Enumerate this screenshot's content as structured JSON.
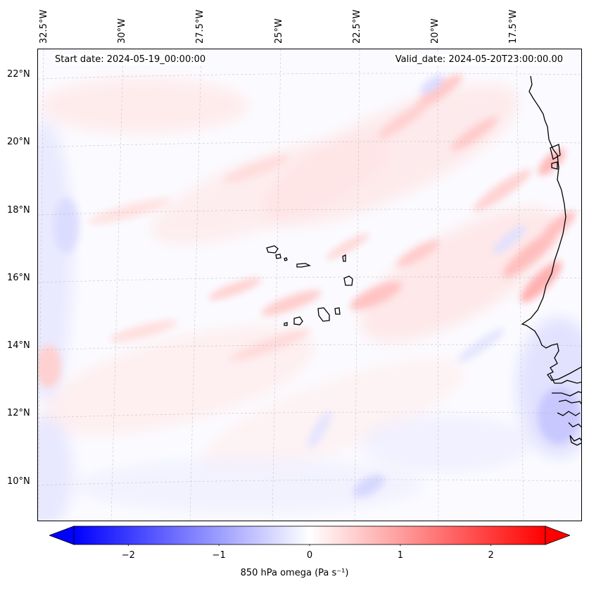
{
  "header": {
    "start_date": "Start date: 2024-05-19_00:00:00",
    "valid_date": "Valid_date: 2024-05-20T23:00:00.00"
  },
  "map": {
    "longitude_labels": [
      "32.5°W",
      "30°W",
      "27.5°W",
      "25°W",
      "22.5°W",
      "20°W",
      "17.5°W"
    ],
    "latitude_labels": [
      "22°N",
      "20°N",
      "18°N",
      "16°N",
      "14°N",
      "12°N",
      "10°N"
    ],
    "field": "850 hPa omega",
    "colormap": "bwr",
    "negative_color": "#0000ff",
    "positive_color": "#ff0000",
    "neutral_color": "#ffffff",
    "coastline_color": "#000000",
    "gridline_style": "dashed-grey"
  },
  "colorbar": {
    "min": -2.6,
    "max": 2.6,
    "ticks": [
      "−2",
      "−1",
      "0",
      "1",
      "2"
    ],
    "tick_values": [
      -2,
      -1,
      0,
      1,
      2
    ],
    "label": "850 hPa omega (Pa s⁻¹)",
    "extend": "both"
  }
}
